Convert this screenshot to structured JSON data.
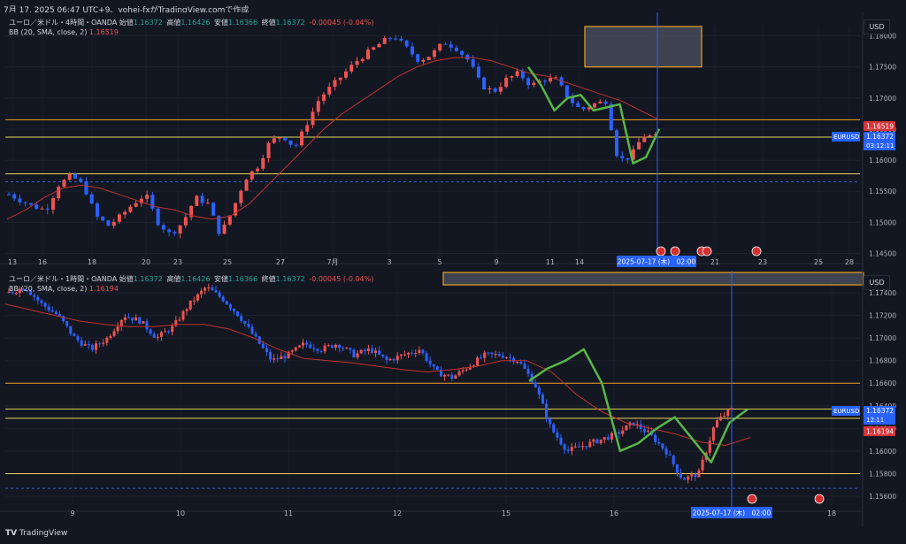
{
  "header": {
    "text": "7月 17, 2025 06:47 UTC+9、yohei-fxがTradingView.comで作成"
  },
  "footer": {
    "brand": "TradingView",
    "logo": "tradingview-logo-icon"
  },
  "colors": {
    "bg": "#131722",
    "up": "#ef5350",
    "down": "#2962ff",
    "bb_mid": "#c2332f",
    "hline_orange": "#f0a020",
    "hline_yellow": "#e6d45a",
    "dashed": "#3a5fc6",
    "green": "#57b846",
    "crosshair": "#2962ff"
  },
  "panels": [
    {
      "id": "h4",
      "info": {
        "symbol": "ユーロ／米ドル・4時間・OANDA",
        "o_label": "始値",
        "o": "1.16372",
        "h_label": "高値",
        "h": "1.16426",
        "l_label": "安値",
        "l": "1.16366",
        "c_label": "終値",
        "c": "1.16372",
        "chg": "-0.00045 (-0.04%)",
        "bb_label": "BB (20, SMA, close, 2)",
        "bb_val": "1.16519"
      },
      "usd": "USD",
      "price_labels": [
        "1.18000",
        "1.17500",
        "1.17000",
        "1.16500",
        "1.16000",
        "1.15500",
        "1.15000",
        "1.14500"
      ],
      "price_ticks": [
        1.18,
        1.175,
        1.17,
        1.165,
        1.16,
        1.155,
        1.15,
        1.145
      ],
      "bb_badge": "1.16519",
      "price_badge": {
        "symbol": "EURUSD",
        "price": "1.16372",
        "countdown": "03:12:11"
      },
      "date_labels": [
        "13",
        "16",
        "18",
        "20",
        "23",
        "25",
        "27",
        "7月",
        "3",
        "5",
        "9",
        "11",
        "14",
        "21",
        "23",
        "25",
        "28"
      ],
      "date_badge": "2025-07-17 (木)　02:00"
    },
    {
      "id": "h1",
      "info": {
        "symbol": "ユーロ／米ドル・1時間・OANDA",
        "o_label": "始値",
        "o": "1.16372",
        "h_label": "高値",
        "h": "1.16426",
        "l_label": "安値",
        "l": "1.16366",
        "c_label": "終値",
        "c": "1.16372",
        "chg": "-0.00045 (-0.04%)",
        "bb_label": "BB (20, SMA, close, 2)",
        "bb_val": "1.16194"
      },
      "usd": "USD",
      "price_labels": [
        "1.17400",
        "1.17200",
        "1.17000",
        "1.16800",
        "1.16600",
        "1.16400",
        "1.16200",
        "1.16000",
        "1.15800",
        "1.15600"
      ],
      "price_ticks": [
        1.174,
        1.172,
        1.17,
        1.168,
        1.166,
        1.164,
        1.162,
        1.16,
        1.158,
        1.156
      ],
      "bb_badge": "1.16194",
      "price_badge": {
        "symbol": "EURUSD",
        "price": "1.16372",
        "countdown": "12:11"
      },
      "date_labels": [
        "9",
        "10",
        "11",
        "12",
        "15",
        "16",
        "18"
      ],
      "date_badge": "2025-07-17 (木)　02:00"
    }
  ],
  "chart_data": [
    {
      "type": "candlestick",
      "title": "ユーロ／米ドル・4時間・OANDA",
      "ylim": [
        1.1445,
        1.1815
      ],
      "horizontal_levels": [
        {
          "price": 1.1665,
          "color": "orange"
        },
        {
          "price": 1.16372,
          "color": "yellow"
        },
        {
          "price": 1.1578,
          "color": "yellow"
        },
        {
          "price": 1.1565,
          "color": "dashed-blue"
        }
      ],
      "path_points": [
        1.1545,
        1.1535,
        1.1525,
        1.152,
        1.156,
        1.1575,
        1.156,
        1.151,
        1.1495,
        1.151,
        1.153,
        1.1545,
        1.15,
        1.148,
        1.15,
        1.154,
        1.153,
        1.148,
        1.152,
        1.157,
        1.159,
        1.163,
        1.164,
        1.162,
        1.166,
        1.17,
        1.172,
        1.174,
        1.176,
        1.1775,
        1.179,
        1.18,
        1.178,
        1.176,
        1.177,
        1.179,
        1.178,
        1.176,
        1.172,
        1.171,
        1.173,
        1.174,
        1.172,
        1.173,
        1.173,
        1.17,
        1.168,
        1.169,
        1.1695,
        1.16,
        1.1605,
        1.164,
        1.16372
      ],
      "bb_middle": [
        1.1505,
        1.152,
        1.154,
        1.1555,
        1.156,
        1.1555,
        1.1545,
        1.1535,
        1.1525,
        1.152,
        1.151,
        1.1505,
        1.151,
        1.153,
        1.156,
        1.159,
        1.162,
        1.165,
        1.1675,
        1.1695,
        1.1715,
        1.1735,
        1.175,
        1.176,
        1.1765,
        1.1765,
        1.176,
        1.175,
        1.174,
        1.1735,
        1.1725,
        1.1715,
        1.1705,
        1.1695,
        1.168,
        1.1665
      ],
      "green_path": [
        1.175,
        1.172,
        1.168,
        1.17,
        1.1705,
        1.168,
        1.1685,
        1.169,
        1.1595,
        1.1605,
        1.165
      ],
      "shaded_box": {
        "price_top": 1.1815,
        "price_bottom": 1.175
      }
    },
    {
      "type": "candlestick",
      "title": "ユーロ／米ドル・1時間・OANDA",
      "ylim": [
        1.1553,
        1.1758
      ],
      "horizontal_levels": [
        {
          "price": 1.166,
          "color": "orange"
        },
        {
          "price": 1.16372,
          "color": "yellow"
        },
        {
          "price": 1.1629,
          "color": "yellow"
        },
        {
          "price": 1.158,
          "color": "yellow"
        },
        {
          "price": 1.1567,
          "color": "dashed-blue"
        }
      ],
      "path_points": [
        1.174,
        1.1745,
        1.173,
        1.172,
        1.17,
        1.169,
        1.17,
        1.172,
        1.1715,
        1.17,
        1.171,
        1.173,
        1.1745,
        1.1735,
        1.172,
        1.17,
        1.168,
        1.1685,
        1.1695,
        1.169,
        1.1695,
        1.1685,
        1.169,
        1.168,
        1.1685,
        1.169,
        1.167,
        1.1665,
        1.1675,
        1.1685,
        1.1685,
        1.168,
        1.166,
        1.162,
        1.16,
        1.1605,
        1.161,
        1.1615,
        1.1625,
        1.1615,
        1.16,
        1.1575,
        1.158,
        1.1625,
        1.1637
      ],
      "bb_middle": [
        1.173,
        1.1725,
        1.172,
        1.1715,
        1.1712,
        1.171,
        1.171,
        1.1712,
        1.1712,
        1.1708,
        1.17,
        1.169,
        1.1682,
        1.168,
        1.1678,
        1.1675,
        1.1672,
        1.167,
        1.1672,
        1.1675,
        1.168,
        1.168,
        1.167,
        1.165,
        1.1635,
        1.1625,
        1.162,
        1.1615,
        1.1608,
        1.1605,
        1.1612
      ],
      "green_path": [
        1.1662,
        1.1673,
        1.168,
        1.169,
        1.166,
        1.16,
        1.1607,
        1.162,
        1.163,
        1.161,
        1.159,
        1.1625,
        1.1637
      ],
      "shaded_box": {
        "price_top": 1.1758,
        "price_bottom": 1.1747
      }
    }
  ]
}
